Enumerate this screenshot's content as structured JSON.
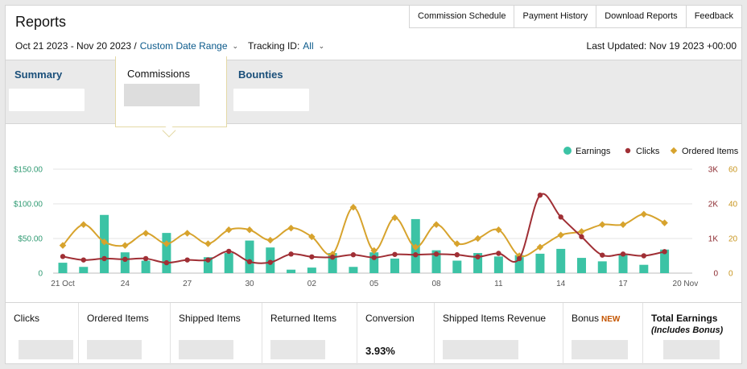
{
  "header": {
    "title": "Reports",
    "tabs": [
      "Commission Schedule",
      "Payment History",
      "Download Reports",
      "Feedback"
    ],
    "date_range": "Oct 21 2023 - Nov 20 2023 /",
    "date_range_link": "Custom Date Range",
    "tracking_label": "Tracking ID:",
    "tracking_value": "All",
    "last_updated": "Last Updated: Nov 19 2023 +00:00"
  },
  "subtabs": {
    "summary": "Summary",
    "commissions": "Commissions",
    "bounties": "Bounties"
  },
  "colors": {
    "earnings": "#3cc3a5",
    "clicks": "#a02f35",
    "ordered": "#d7a32d",
    "axis_left": "#2f9a72",
    "axis_right_clicks": "#8c2a2f",
    "axis_right_ordered": "#c8951e"
  },
  "chart_data": {
    "type": "bar",
    "title": "",
    "legend": [
      "Earnings",
      "Clicks",
      "Ordered Items"
    ],
    "legend_position": "top-right",
    "x_tick_labels": [
      "21 Oct",
      "24",
      "27",
      "30",
      "02",
      "05",
      "08",
      "11",
      "14",
      "17",
      "20 Nov"
    ],
    "y_left_ticks": [
      "$150.00",
      "$100.00",
      "$50.00",
      "0"
    ],
    "y_left_range": [
      0,
      150
    ],
    "y_right_clicks_ticks": [
      "3K",
      "2K",
      "1K",
      "0"
    ],
    "y_right_clicks_range": [
      0,
      3000
    ],
    "y_right_ordered_ticks": [
      "60",
      "40",
      "20",
      "0"
    ],
    "y_right_ordered_range": [
      0,
      60
    ],
    "dates": [
      "Oct 21",
      "Oct 22",
      "Oct 23",
      "Oct 24",
      "Oct 25",
      "Oct 26",
      "Oct 27",
      "Oct 28",
      "Oct 29",
      "Oct 30",
      "Oct 31",
      "Nov 01",
      "Nov 02",
      "Nov 03",
      "Nov 04",
      "Nov 05",
      "Nov 06",
      "Nov 07",
      "Nov 08",
      "Nov 09",
      "Nov 10",
      "Nov 11",
      "Nov 12",
      "Nov 13",
      "Nov 14",
      "Nov 15",
      "Nov 16",
      "Nov 17",
      "Nov 18",
      "Nov 19",
      "Nov 20"
    ],
    "series": [
      {
        "name": "Earnings",
        "type": "bar",
        "values": [
          15,
          9,
          84,
          30,
          18,
          58,
          0,
          23,
          29,
          47,
          37,
          5,
          8,
          29,
          9,
          30,
          21,
          78,
          33,
          18,
          29,
          24,
          26,
          28,
          35,
          22,
          17,
          27,
          12,
          34,
          0
        ]
      },
      {
        "name": "Clicks",
        "type": "line",
        "values": [
          480,
          380,
          420,
          400,
          420,
          300,
          380,
          380,
          630,
          330,
          310,
          550,
          470,
          460,
          530,
          450,
          540,
          530,
          550,
          530,
          470,
          570,
          420,
          2250,
          1620,
          1050,
          520,
          550,
          500,
          620,
          0
        ]
      },
      {
        "name": "Ordered Items",
        "type": "line",
        "values": [
          16,
          28,
          18,
          16,
          23,
          17,
          23,
          17,
          25,
          25,
          19,
          26,
          21,
          11,
          38,
          13,
          32,
          15,
          28,
          17,
          20,
          25,
          10,
          15,
          22,
          24,
          28,
          28,
          34,
          29,
          0
        ]
      }
    ]
  },
  "stats": [
    {
      "label": "Clicks",
      "value": ""
    },
    {
      "label": "Ordered Items",
      "value": ""
    },
    {
      "label": "Shipped Items",
      "value": ""
    },
    {
      "label": "Returned Items",
      "value": ""
    },
    {
      "label": "Conversion",
      "value": "3.93%"
    },
    {
      "label": "Shipped Items Revenue",
      "value": ""
    },
    {
      "label": "Bonus",
      "badge": "NEW",
      "value": ""
    },
    {
      "label": "Total Earnings",
      "sublabel": "(Includes Bonus)",
      "value": ""
    }
  ]
}
